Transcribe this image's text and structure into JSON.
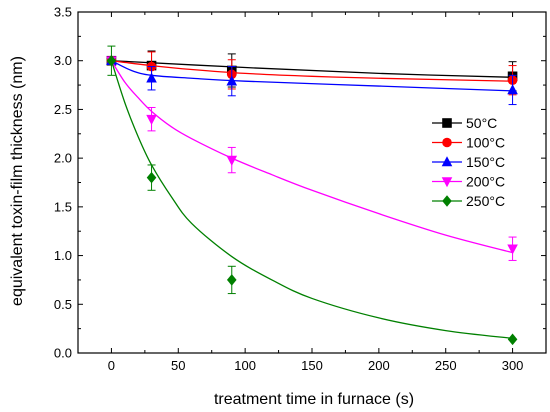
{
  "chart_data": {
    "type": "scatter",
    "xlabel": "treatment time in furnace (s)",
    "ylabel": "equivalent toxin-film thickness (nm)",
    "xlim": [
      -25,
      325
    ],
    "ylim": [
      0,
      3.5
    ],
    "x_ticks": [
      0,
      50,
      100,
      150,
      200,
      250,
      300
    ],
    "y_ticks": [
      0.0,
      0.5,
      1.0,
      1.5,
      2.0,
      2.5,
      3.0,
      3.5
    ],
    "x_tick_labels": [
      "0",
      "50",
      "100",
      "150",
      "200",
      "250",
      "300"
    ],
    "y_tick_labels": [
      "0.0",
      "0.5",
      "1.0",
      "1.5",
      "2.0",
      "2.5",
      "3.0",
      "3.5"
    ],
    "grid": false,
    "legend_position": "right",
    "series": [
      {
        "name": "50°C",
        "color": "#000000",
        "marker": "square",
        "x": [
          0,
          30,
          90,
          300
        ],
        "y": [
          3.0,
          2.95,
          2.9,
          2.84
        ],
        "err": [
          0.0,
          0.15,
          0.17,
          0.15
        ],
        "fit": [
          [
            0,
            3.0
          ],
          [
            100,
            2.93
          ],
          [
            200,
            2.87
          ],
          [
            300,
            2.83
          ]
        ]
      },
      {
        "name": "100°C",
        "color": "#ff0000",
        "marker": "circle",
        "x": [
          0,
          30,
          90,
          300
        ],
        "y": [
          3.0,
          2.94,
          2.86,
          2.8
        ],
        "err": [
          0.0,
          0.15,
          0.15,
          0.15
        ],
        "fit": [
          [
            0,
            3.0
          ],
          [
            30,
            2.95
          ],
          [
            60,
            2.91
          ],
          [
            100,
            2.87
          ],
          [
            150,
            2.84
          ],
          [
            200,
            2.82
          ],
          [
            300,
            2.79
          ]
        ]
      },
      {
        "name": "150°C",
        "color": "#0000ff",
        "marker": "triangle-up",
        "x": [
          0,
          30,
          90,
          300
        ],
        "y": [
          3.0,
          2.82,
          2.79,
          2.7
        ],
        "err": [
          0.0,
          0.12,
          0.15,
          0.15
        ],
        "fit": [
          [
            0,
            3.0
          ],
          [
            15,
            2.9
          ],
          [
            30,
            2.85
          ],
          [
            60,
            2.82
          ],
          [
            100,
            2.79
          ],
          [
            200,
            2.74
          ],
          [
            300,
            2.69
          ]
        ]
      },
      {
        "name": "200°C",
        "color": "#ff00ff",
        "marker": "triangle-down",
        "x": [
          0,
          30,
          90,
          300
        ],
        "y": [
          3.0,
          2.4,
          1.98,
          1.07
        ],
        "err": [
          0.0,
          0.12,
          0.13,
          0.12
        ],
        "fit": [
          [
            0,
            3.0
          ],
          [
            10,
            2.78
          ],
          [
            20,
            2.62
          ],
          [
            30,
            2.48
          ],
          [
            45,
            2.32
          ],
          [
            60,
            2.2
          ],
          [
            90,
            2.0
          ],
          [
            120,
            1.83
          ],
          [
            150,
            1.67
          ],
          [
            200,
            1.43
          ],
          [
            250,
            1.21
          ],
          [
            300,
            1.03
          ]
        ]
      },
      {
        "name": "250°C",
        "color": "#008000",
        "marker": "diamond",
        "x": [
          0,
          30,
          90,
          300
        ],
        "y": [
          3.0,
          1.8,
          0.75,
          0.14
        ],
        "err": [
          0.15,
          0.13,
          0.14,
          0.0
        ],
        "fit": [
          [
            0,
            3.0
          ],
          [
            10,
            2.57
          ],
          [
            20,
            2.22
          ],
          [
            30,
            1.93
          ],
          [
            45,
            1.6
          ],
          [
            60,
            1.33
          ],
          [
            90,
            0.99
          ],
          [
            120,
            0.75
          ],
          [
            150,
            0.56
          ],
          [
            200,
            0.36
          ],
          [
            250,
            0.23
          ],
          [
            300,
            0.15
          ]
        ]
      }
    ]
  }
}
